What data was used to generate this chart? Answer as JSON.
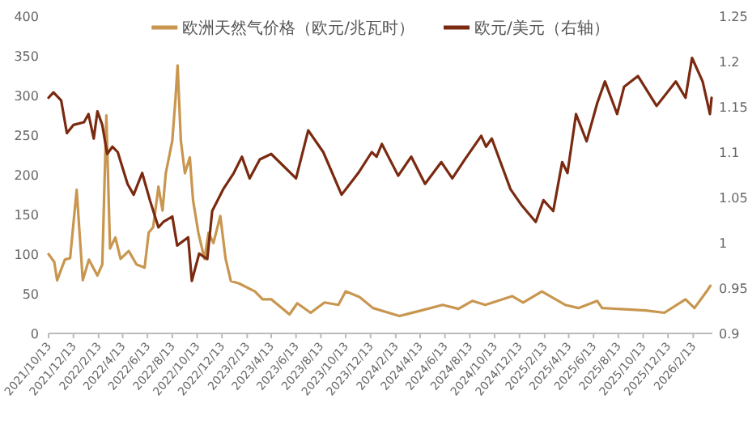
{
  "chart_data": {
    "type": "line",
    "legend": "top",
    "xlim": [
      "2021-10-13",
      "2026-04-01"
    ],
    "xticks": [
      {
        "value": "2021-10-13",
        "label": "2021/10/13"
      },
      {
        "value": "2021-12-13",
        "label": "2021/12/13"
      },
      {
        "value": "2022-02-13",
        "label": "2022/2/13"
      },
      {
        "value": "2022-04-13",
        "label": "2022/4/13"
      },
      {
        "value": "2022-06-13",
        "label": "2022/6/13"
      },
      {
        "value": "2022-08-13",
        "label": "2022/8/13"
      },
      {
        "value": "2022-10-13",
        "label": "2022/10/13"
      },
      {
        "value": "2022-12-13",
        "label": "2022/12/13"
      },
      {
        "value": "2023-02-13",
        "label": "2023/2/13"
      },
      {
        "value": "2023-04-13",
        "label": "2023/4/13"
      },
      {
        "value": "2023-06-13",
        "label": "2023/6/13"
      },
      {
        "value": "2023-08-13",
        "label": "2023/8/13"
      },
      {
        "value": "2023-10-13",
        "label": "2023/10/13"
      },
      {
        "value": "2023-12-13",
        "label": "2023/12/13"
      },
      {
        "value": "2024-02-13",
        "label": "2024/2/13"
      },
      {
        "value": "2024-04-13",
        "label": "2024/4/13"
      },
      {
        "value": "2024-06-13",
        "label": "2024/6/13"
      },
      {
        "value": "2024-08-13",
        "label": "2024/8/13"
      },
      {
        "value": "2024-10-13",
        "label": "2024/10/13"
      },
      {
        "value": "2024-12-13",
        "label": "2024/12/13"
      },
      {
        "value": "2025-02-13",
        "label": "2025/2/13"
      },
      {
        "value": "2025-04-13",
        "label": "2025/4/13"
      },
      {
        "value": "2025-06-13",
        "label": "2025/6/13"
      },
      {
        "value": "2025-08-13",
        "label": "2025/8/13"
      },
      {
        "value": "2025-10-13",
        "label": "2025/10/13"
      },
      {
        "value": "2025-12-13",
        "label": "2025/12/13"
      },
      {
        "value": "2026-02-13",
        "label": "2026/2/13"
      }
    ],
    "ylim": [
      0,
      400
    ],
    "yticks": [
      0,
      50,
      100,
      150,
      200,
      250,
      300,
      350,
      400
    ],
    "y2lim": [
      0.9,
      1.25
    ],
    "y2ticks": [
      0.9,
      0.95,
      1,
      1.05,
      1.1,
      1.15,
      1.2,
      1.25
    ],
    "series": [
      {
        "name": "欧洲天然气价格（欧元/兆瓦时）",
        "color": "#c8964f",
        "x": [
          "2021-10-13",
          "2021-10-27",
          "2021-11-03",
          "2021-11-22",
          "2021-12-05",
          "2021-12-21",
          "2022-01-05",
          "2022-01-20",
          "2022-02-10",
          "2022-02-22",
          "2022-03-04",
          "2022-03-13",
          "2022-03-26",
          "2022-04-08",
          "2022-04-28",
          "2022-05-17",
          "2022-06-06",
          "2022-06-16",
          "2022-06-27",
          "2022-07-10",
          "2022-07-20",
          "2022-07-28",
          "2022-08-13",
          "2022-08-21",
          "2022-08-26",
          "2022-09-03",
          "2022-09-13",
          "2022-09-25",
          "2022-10-03",
          "2022-10-16",
          "2022-10-31",
          "2022-11-10",
          "2022-11-22",
          "2022-12-09",
          "2022-12-22",
          "2023-01-04",
          "2023-01-24",
          "2023-03-04",
          "2023-03-23",
          "2023-04-13",
          "2023-05-28",
          "2023-06-16",
          "2023-07-19",
          "2023-08-22",
          "2023-09-25",
          "2023-10-13",
          "2023-11-16",
          "2023-12-19",
          "2024-02-22",
          "2024-04-16",
          "2024-06-07",
          "2024-07-16",
          "2024-08-19",
          "2024-09-20",
          "2024-11-25",
          "2024-12-22",
          "2025-02-06",
          "2025-04-04",
          "2025-05-07",
          "2025-06-22",
          "2025-07-04",
          "2025-10-19",
          "2025-12-04",
          "2026-01-25",
          "2026-02-16",
          "2026-03-18",
          "2026-03-27"
        ],
        "values": [
          100,
          90,
          67,
          93,
          95,
          181,
          67,
          93,
          73,
          87,
          275,
          107,
          121,
          94,
          104,
          87,
          83,
          127,
          134,
          185,
          155,
          202,
          243,
          297,
          338,
          243,
          202,
          222,
          168,
          127,
          94,
          127,
          114,
          148,
          94,
          66,
          63,
          53,
          43,
          43,
          24,
          38,
          26,
          39,
          36,
          53,
          46,
          32,
          22,
          29,
          36,
          31,
          41,
          36,
          47,
          39,
          53,
          36,
          32,
          41,
          32,
          29,
          26,
          43,
          32,
          53,
          60
        ]
      },
      {
        "name": "欧元/美元（右轴）",
        "color": "#7a2a10",
        "axis": "y2",
        "x": [
          "2021-10-13",
          "2021-10-25",
          "2021-11-13",
          "2021-11-27",
          "2021-12-13",
          "2022-01-08",
          "2022-01-19",
          "2022-02-01",
          "2022-02-10",
          "2022-02-22",
          "2022-03-06",
          "2022-03-19",
          "2022-04-01",
          "2022-04-25",
          "2022-05-10",
          "2022-05-31",
          "2022-06-19",
          "2022-07-10",
          "2022-07-22",
          "2022-08-13",
          "2022-08-25",
          "2022-09-21",
          "2022-09-30",
          "2022-10-18",
          "2022-11-07",
          "2022-11-19",
          "2022-12-16",
          "2023-01-11",
          "2023-01-31",
          "2023-02-19",
          "2023-03-16",
          "2023-04-13",
          "2023-06-13",
          "2023-07-13",
          "2023-08-19",
          "2023-10-03",
          "2023-11-13",
          "2023-12-16",
          "2023-12-28",
          "2024-01-10",
          "2024-02-19",
          "2024-03-22",
          "2024-04-25",
          "2024-06-04",
          "2024-07-01",
          "2024-08-01",
          "2024-09-10",
          "2024-09-22",
          "2024-10-06",
          "2024-11-21",
          "2024-12-19",
          "2025-01-22",
          "2025-02-10",
          "2025-03-06",
          "2025-03-28",
          "2025-04-10",
          "2025-05-01",
          "2025-05-27",
          "2025-06-22",
          "2025-07-11",
          "2025-08-10",
          "2025-08-27",
          "2025-09-30",
          "2025-11-15",
          "2026-01-01",
          "2026-01-25",
          "2026-02-10",
          "2026-03-08",
          "2026-03-26",
          "2026-03-30"
        ],
        "values": [
          1.16,
          1.166,
          1.157,
          1.121,
          1.13,
          1.133,
          1.142,
          1.115,
          1.145,
          1.13,
          1.098,
          1.106,
          1.1,
          1.065,
          1.053,
          1.077,
          1.047,
          1.017,
          1.023,
          1.029,
          0.997,
          1.006,
          0.958,
          0.988,
          0.982,
          1.035,
          1.059,
          1.077,
          1.095,
          1.071,
          1.092,
          1.098,
          1.071,
          1.124,
          1.1,
          1.053,
          1.077,
          1.1,
          1.095,
          1.109,
          1.074,
          1.095,
          1.065,
          1.089,
          1.071,
          1.092,
          1.118,
          1.106,
          1.115,
          1.059,
          1.041,
          1.023,
          1.047,
          1.035,
          1.089,
          1.077,
          1.142,
          1.112,
          1.154,
          1.178,
          1.142,
          1.172,
          1.184,
          1.151,
          1.178,
          1.16,
          1.204,
          1.178,
          1.142,
          1.16
        ]
      }
    ]
  }
}
